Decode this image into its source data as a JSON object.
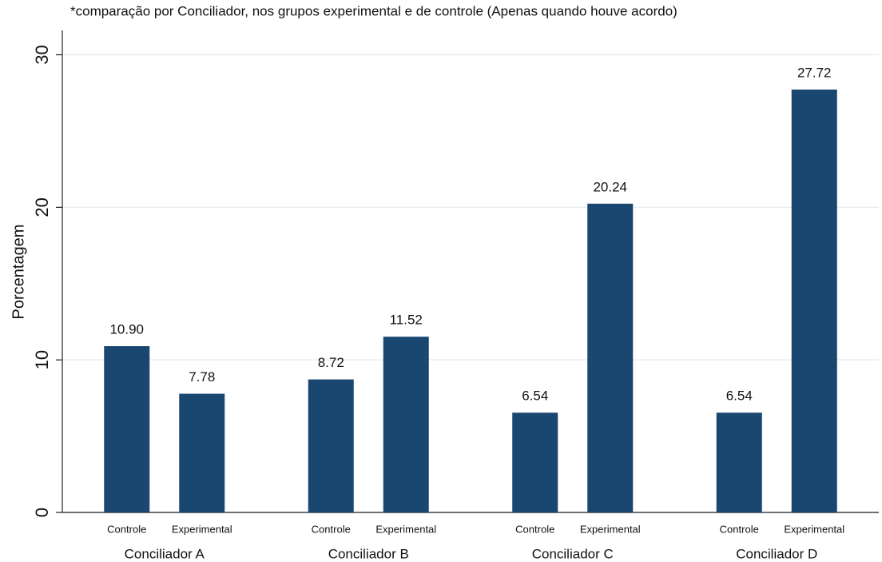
{
  "chart_data": {
    "type": "bar",
    "title": "*comparação por Conciliador, nos grupos experimental e de controle (Apenas quando houve acordo)",
    "y_label": "Porcentagem",
    "categories": [
      "Conciliador A",
      "Conciliador B",
      "Conciliador C",
      "Conciliador D"
    ],
    "series": [
      {
        "name": "Controle",
        "color": "#1a476f",
        "values": [
          10.9,
          8.72,
          6.54,
          6.54
        ],
        "value_labels": [
          "10.90",
          "8.72",
          "6.54",
          "6.54"
        ]
      },
      {
        "name": "Experimental",
        "color": "#1a476f",
        "values": [
          7.78,
          11.52,
          20.24,
          27.72
        ],
        "value_labels": [
          "7.78",
          "11.52",
          "20.24",
          "27.72"
        ]
      }
    ],
    "ylim": [
      0,
      31.6
    ],
    "yticks": [
      0,
      10,
      20,
      30
    ],
    "grid": true
  }
}
